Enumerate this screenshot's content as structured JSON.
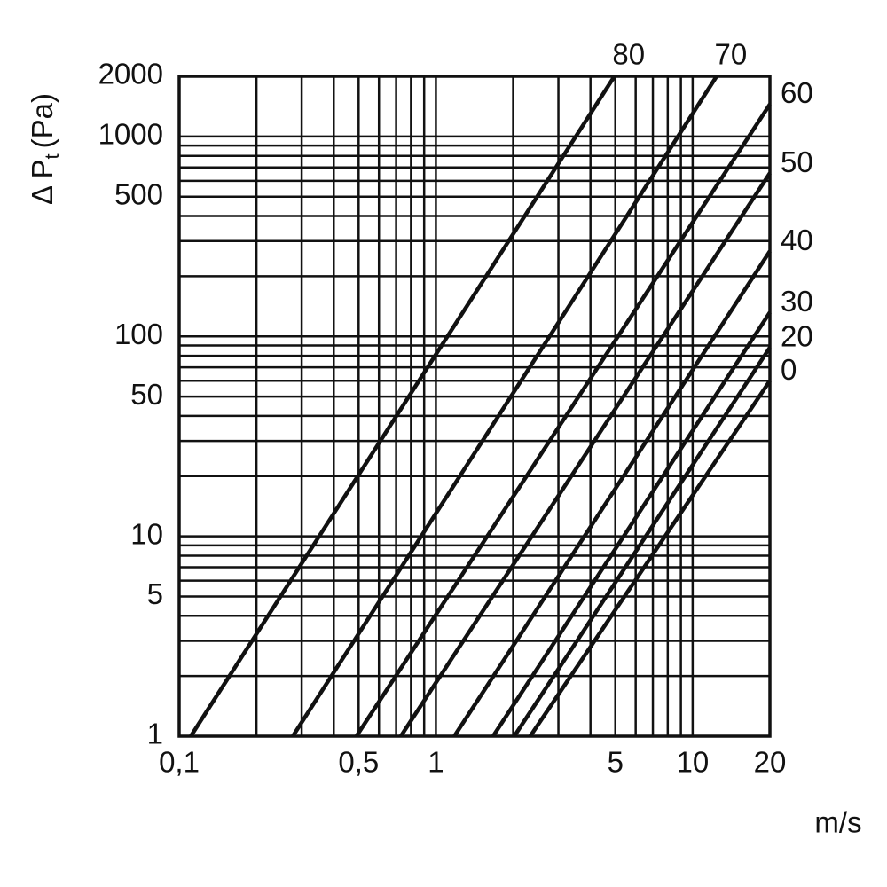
{
  "chart_data": {
    "type": "line",
    "log_x": true,
    "log_y": true,
    "grid": true,
    "x_label": "m/s",
    "y_label": [
      "Δ P",
      "t",
      "(Pa)"
    ],
    "xlim": [
      0.1,
      20
    ],
    "ylim": [
      1,
      2000
    ],
    "xticks": [
      {
        "value": 0.1,
        "label": "0,1"
      },
      {
        "value": 0.5,
        "label": "0,5"
      },
      1,
      5,
      10,
      20
    ],
    "yticks": [
      1,
      5,
      10,
      50,
      100,
      500,
      1000,
      2000
    ],
    "xgrid": [
      0.2,
      0.3,
      0.4,
      0.6,
      0.7,
      0.8,
      0.9,
      2,
      3,
      4,
      6,
      7,
      8,
      9
    ],
    "ygrid": [
      2,
      3,
      4,
      6,
      7,
      8,
      9,
      20,
      30,
      40,
      60,
      70,
      80,
      90,
      200,
      300,
      400,
      600,
      700,
      800,
      900
    ],
    "series": [
      {
        "name": "80",
        "color": "#111111",
        "x": [
          0.111,
          4.96
        ],
        "values": [
          1,
          2000
        ]
      },
      {
        "name": "70",
        "color": "#111111",
        "x": [
          0.277,
          12.4
        ],
        "values": [
          1,
          2000
        ]
      },
      {
        "name": "60",
        "color": "#111111",
        "x": [
          0.49,
          20
        ],
        "values": [
          1,
          1450
        ]
      },
      {
        "name": "50",
        "color": "#111111",
        "x": [
          0.73,
          20
        ],
        "values": [
          1,
          656
        ]
      },
      {
        "name": "40",
        "color": "#111111",
        "x": [
          1.18,
          20
        ],
        "values": [
          1,
          267
        ]
      },
      {
        "name": "30",
        "color": "#111111",
        "x": [
          1.67,
          20
        ],
        "values": [
          1,
          132
        ]
      },
      {
        "name": "20",
        "color": "#111111",
        "x": [
          2.02,
          20
        ],
        "values": [
          1,
          88
        ]
      },
      {
        "name": "0",
        "color": "#111111",
        "x": [
          2.33,
          20
        ],
        "values": [
          1,
          60
        ]
      }
    ]
  }
}
